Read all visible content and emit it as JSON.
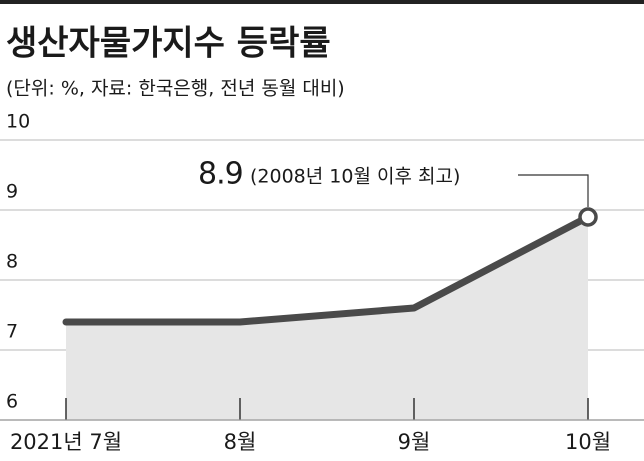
{
  "chart_data": {
    "type": "line",
    "title": "생산자물가지수 등락률",
    "subtitle": "(단위: %, 자료: 한국은행, 전년 동월 대비)",
    "categories": [
      "2021년 7월",
      "8월",
      "9월",
      "10월"
    ],
    "values": [
      7.4,
      7.4,
      7.6,
      8.9
    ],
    "color": "#4a4a4a",
    "area": true,
    "area_color": "#e6e6e6",
    "annotation": "(2008년 10월 이후 최고)",
    "ylim": [
      6,
      10
    ],
    "yticks": [
      6,
      7,
      8,
      9,
      10
    ],
    "grid": true
  }
}
